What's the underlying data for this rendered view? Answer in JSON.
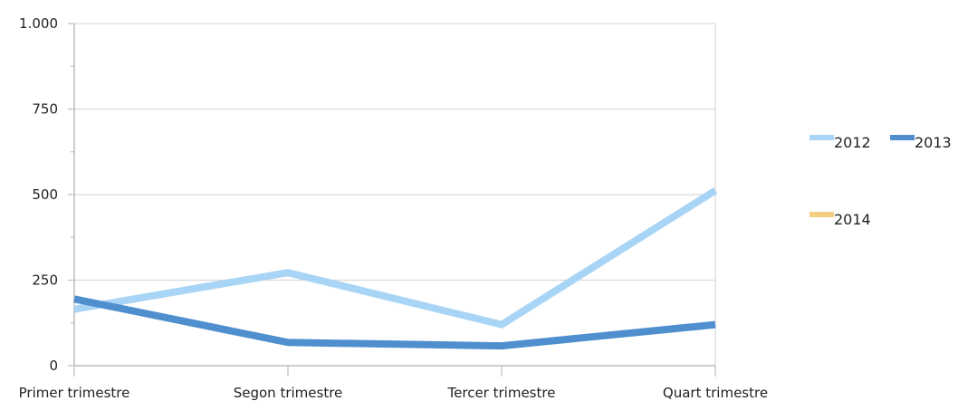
{
  "chart_data": {
    "type": "line",
    "title": "",
    "xlabel": "",
    "ylabel": "",
    "categories": [
      "Primer trimestre",
      "Segon trimestre",
      "Tercer trimestre",
      "Quart trimestre"
    ],
    "ylim": [
      0,
      1000
    ],
    "y_ticks": [
      0,
      250,
      500,
      750,
      1000
    ],
    "y_tick_labels": [
      "0",
      "250",
      "500",
      "750",
      "1.000"
    ],
    "grid": true,
    "legend_position": "right",
    "series": [
      {
        "name": "2012",
        "color": "#a8d4f5",
        "values": [
          165,
          272,
          120,
          512
        ]
      },
      {
        "name": "2013",
        "color": "#4f8fce",
        "values": [
          195,
          68,
          58,
          120
        ]
      },
      {
        "name": "2014",
        "color": "#f2cf80",
        "values": [
          null,
          null,
          null,
          null
        ]
      }
    ]
  }
}
